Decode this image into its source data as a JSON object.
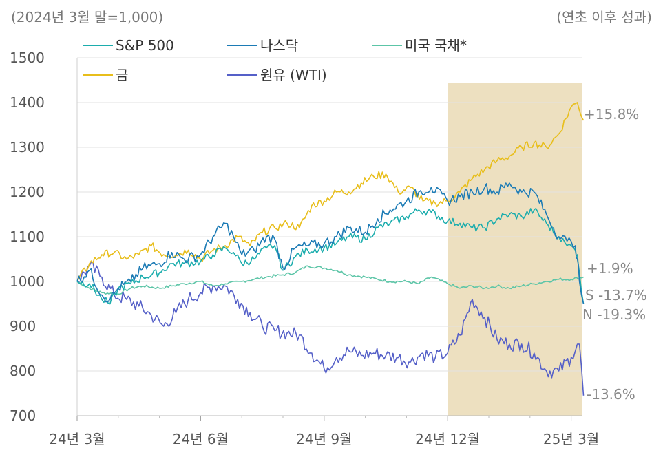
{
  "chart_data": {
    "type": "line",
    "subtitle_left": "(2024년 3월 말=1,000)",
    "subtitle_right": "(연초 이후 성과)",
    "ylim": [
      700,
      1500
    ],
    "yticks": [
      700,
      800,
      900,
      1000,
      1100,
      1200,
      1300,
      1400,
      1500
    ],
    "x_axis": {
      "start": 0,
      "end": 12.3,
      "tick_labels": [
        {
          "label": "24년 3월",
          "x": 0
        },
        {
          "label": "24년 6월",
          "x": 3
        },
        {
          "label": "24년 9월",
          "x": 6
        },
        {
          "label": "24년 12월",
          "x": 9
        },
        {
          "label": "25년 3월",
          "x": 12
        }
      ],
      "minor_ticks": [
        1,
        2,
        4,
        5,
        7,
        8,
        10,
        11
      ]
    },
    "highlight_region": {
      "x_start": 9,
      "x_end": 12.3,
      "color": "#ede0c0"
    },
    "grid": "horizontal",
    "legend_placement": "top-left",
    "series": [
      {
        "name": "S&P 500",
        "color": "#1cadad",
        "end_label": "S -13.7%",
        "points": [
          [
            0,
            1000
          ],
          [
            0.3,
            995
          ],
          [
            0.6,
            960
          ],
          [
            0.8,
            950
          ],
          [
            1.0,
            985
          ],
          [
            1.3,
            995
          ],
          [
            1.6,
            1010
          ],
          [
            2.0,
            1020
          ],
          [
            2.3,
            1040
          ],
          [
            2.6,
            1040
          ],
          [
            3.0,
            1045
          ],
          [
            3.3,
            1060
          ],
          [
            3.6,
            1075
          ],
          [
            3.8,
            1065
          ],
          [
            4.0,
            1040
          ],
          [
            4.3,
            1050
          ],
          [
            4.6,
            1075
          ],
          [
            4.8,
            1080
          ],
          [
            5.0,
            1025
          ],
          [
            5.3,
            1055
          ],
          [
            5.6,
            1070
          ],
          [
            6.0,
            1075
          ],
          [
            6.3,
            1085
          ],
          [
            6.6,
            1100
          ],
          [
            7.0,
            1095
          ],
          [
            7.3,
            1120
          ],
          [
            7.6,
            1130
          ],
          [
            8.0,
            1145
          ],
          [
            8.3,
            1160
          ],
          [
            8.6,
            1155
          ],
          [
            9.0,
            1135
          ],
          [
            9.3,
            1130
          ],
          [
            9.6,
            1120
          ],
          [
            9.9,
            1120
          ],
          [
            10.2,
            1140
          ],
          [
            10.5,
            1150
          ],
          [
            10.8,
            1145
          ],
          [
            11.1,
            1160
          ],
          [
            11.4,
            1130
          ],
          [
            11.7,
            1100
          ],
          [
            11.9,
            1080
          ],
          [
            12.0,
            1080
          ],
          [
            12.1,
            1070
          ],
          [
            12.15,
            1060
          ],
          [
            12.2,
            1020
          ],
          [
            12.3,
            950
          ]
        ]
      },
      {
        "name": "나스닥",
        "color": "#1c7bb5",
        "end_label": "N -19.3%",
        "points": [
          [
            0,
            1000
          ],
          [
            0.3,
            1025
          ],
          [
            0.6,
            970
          ],
          [
            0.8,
            960
          ],
          [
            1.0,
            985
          ],
          [
            1.3,
            1000
          ],
          [
            1.6,
            1030
          ],
          [
            2.0,
            1040
          ],
          [
            2.3,
            1065
          ],
          [
            2.6,
            1050
          ],
          [
            3.0,
            1060
          ],
          [
            3.3,
            1100
          ],
          [
            3.6,
            1130
          ],
          [
            3.8,
            1100
          ],
          [
            4.0,
            1060
          ],
          [
            4.3,
            1070
          ],
          [
            4.6,
            1100
          ],
          [
            4.8,
            1095
          ],
          [
            5.0,
            1030
          ],
          [
            5.3,
            1075
          ],
          [
            5.6,
            1080
          ],
          [
            6.0,
            1085
          ],
          [
            6.3,
            1100
          ],
          [
            6.6,
            1120
          ],
          [
            7.0,
            1110
          ],
          [
            7.3,
            1140
          ],
          [
            7.6,
            1160
          ],
          [
            8.0,
            1180
          ],
          [
            8.3,
            1200
          ],
          [
            8.6,
            1210
          ],
          [
            9.0,
            1180
          ],
          [
            9.3,
            1190
          ],
          [
            9.6,
            1200
          ],
          [
            9.9,
            1210
          ],
          [
            10.2,
            1200
          ],
          [
            10.5,
            1220
          ],
          [
            10.8,
            1200
          ],
          [
            11.1,
            1200
          ],
          [
            11.4,
            1150
          ],
          [
            11.7,
            1100
          ],
          [
            11.9,
            1090
          ],
          [
            12.0,
            1090
          ],
          [
            12.1,
            1080
          ],
          [
            12.15,
            1050
          ],
          [
            12.2,
            1000
          ],
          [
            12.3,
            950
          ]
        ]
      },
      {
        "name": "미국 국채*",
        "color": "#5cc5a7",
        "end_label": "+1.9%",
        "points": [
          [
            0,
            1000
          ],
          [
            0.3,
            985
          ],
          [
            0.6,
            975
          ],
          [
            1.0,
            972
          ],
          [
            1.3,
            985
          ],
          [
            1.6,
            990
          ],
          [
            2.0,
            985
          ],
          [
            2.3,
            990
          ],
          [
            2.6,
            995
          ],
          [
            3.0,
            1000
          ],
          [
            3.3,
            990
          ],
          [
            3.6,
            995
          ],
          [
            4.0,
            1000
          ],
          [
            4.3,
            1005
          ],
          [
            4.6,
            1010
          ],
          [
            5.0,
            1015
          ],
          [
            5.3,
            1020
          ],
          [
            5.6,
            1035
          ],
          [
            6.0,
            1030
          ],
          [
            6.3,
            1025
          ],
          [
            6.6,
            1015
          ],
          [
            7.0,
            1010
          ],
          [
            7.3,
            1005
          ],
          [
            7.6,
            1000
          ],
          [
            8.0,
            1000
          ],
          [
            8.3,
            995
          ],
          [
            8.6,
            1010
          ],
          [
            9.0,
            995
          ],
          [
            9.3,
            985
          ],
          [
            9.6,
            990
          ],
          [
            9.9,
            985
          ],
          [
            10.2,
            990
          ],
          [
            10.5,
            985
          ],
          [
            10.8,
            990
          ],
          [
            11.1,
            995
          ],
          [
            11.4,
            1000
          ],
          [
            11.7,
            1005
          ],
          [
            12.0,
            1005
          ],
          [
            12.3,
            1010
          ]
        ]
      },
      {
        "name": "금",
        "color": "#e8be1b",
        "end_label": "+15.8%",
        "points": [
          [
            0,
            1000
          ],
          [
            0.3,
            1040
          ],
          [
            0.6,
            1060
          ],
          [
            0.9,
            1065
          ],
          [
            1.2,
            1050
          ],
          [
            1.5,
            1060
          ],
          [
            1.8,
            1080
          ],
          [
            2.1,
            1060
          ],
          [
            2.4,
            1060
          ],
          [
            2.7,
            1070
          ],
          [
            3.0,
            1050
          ],
          [
            3.3,
            1070
          ],
          [
            3.6,
            1080
          ],
          [
            3.9,
            1100
          ],
          [
            4.2,
            1080
          ],
          [
            4.5,
            1110
          ],
          [
            4.8,
            1120
          ],
          [
            5.1,
            1130
          ],
          [
            5.4,
            1120
          ],
          [
            5.7,
            1170
          ],
          [
            6.0,
            1180
          ],
          [
            6.3,
            1200
          ],
          [
            6.6,
            1200
          ],
          [
            6.9,
            1220
          ],
          [
            7.2,
            1235
          ],
          [
            7.5,
            1240
          ],
          [
            7.8,
            1200
          ],
          [
            8.1,
            1210
          ],
          [
            8.4,
            1180
          ],
          [
            8.7,
            1175
          ],
          [
            9.0,
            1180
          ],
          [
            9.3,
            1200
          ],
          [
            9.6,
            1230
          ],
          [
            9.9,
            1250
          ],
          [
            10.2,
            1270
          ],
          [
            10.5,
            1280
          ],
          [
            10.8,
            1300
          ],
          [
            11.1,
            1310
          ],
          [
            11.4,
            1300
          ],
          [
            11.7,
            1330
          ],
          [
            12.0,
            1390
          ],
          [
            12.15,
            1400
          ],
          [
            12.3,
            1360
          ]
        ]
      },
      {
        "name": "원유 (WTI)",
        "color": "#5560c8",
        "end_label": "-13.6%",
        "points": [
          [
            0,
            1000
          ],
          [
            0.3,
            1035
          ],
          [
            0.6,
            1010
          ],
          [
            0.9,
            970
          ],
          [
            1.2,
            960
          ],
          [
            1.5,
            945
          ],
          [
            1.8,
            925
          ],
          [
            2.1,
            900
          ],
          [
            2.4,
            930
          ],
          [
            2.7,
            960
          ],
          [
            3.0,
            975
          ],
          [
            3.3,
            990
          ],
          [
            3.6,
            990
          ],
          [
            3.9,
            960
          ],
          [
            4.2,
            930
          ],
          [
            4.5,
            900
          ],
          [
            4.8,
            890
          ],
          [
            5.1,
            885
          ],
          [
            5.4,
            880
          ],
          [
            5.7,
            840
          ],
          [
            6.0,
            805
          ],
          [
            6.3,
            830
          ],
          [
            6.6,
            845
          ],
          [
            6.9,
            835
          ],
          [
            7.2,
            840
          ],
          [
            7.5,
            835
          ],
          [
            7.8,
            830
          ],
          [
            8.1,
            820
          ],
          [
            8.4,
            840
          ],
          [
            8.7,
            830
          ],
          [
            9.0,
            840
          ],
          [
            9.3,
            880
          ],
          [
            9.6,
            960
          ],
          [
            9.9,
            920
          ],
          [
            10.2,
            870
          ],
          [
            10.5,
            860
          ],
          [
            10.8,
            860
          ],
          [
            11.1,
            840
          ],
          [
            11.4,
            800
          ],
          [
            11.7,
            800
          ],
          [
            12.0,
            830
          ],
          [
            12.15,
            860
          ],
          [
            12.2,
            860
          ],
          [
            12.3,
            745
          ]
        ]
      }
    ]
  }
}
